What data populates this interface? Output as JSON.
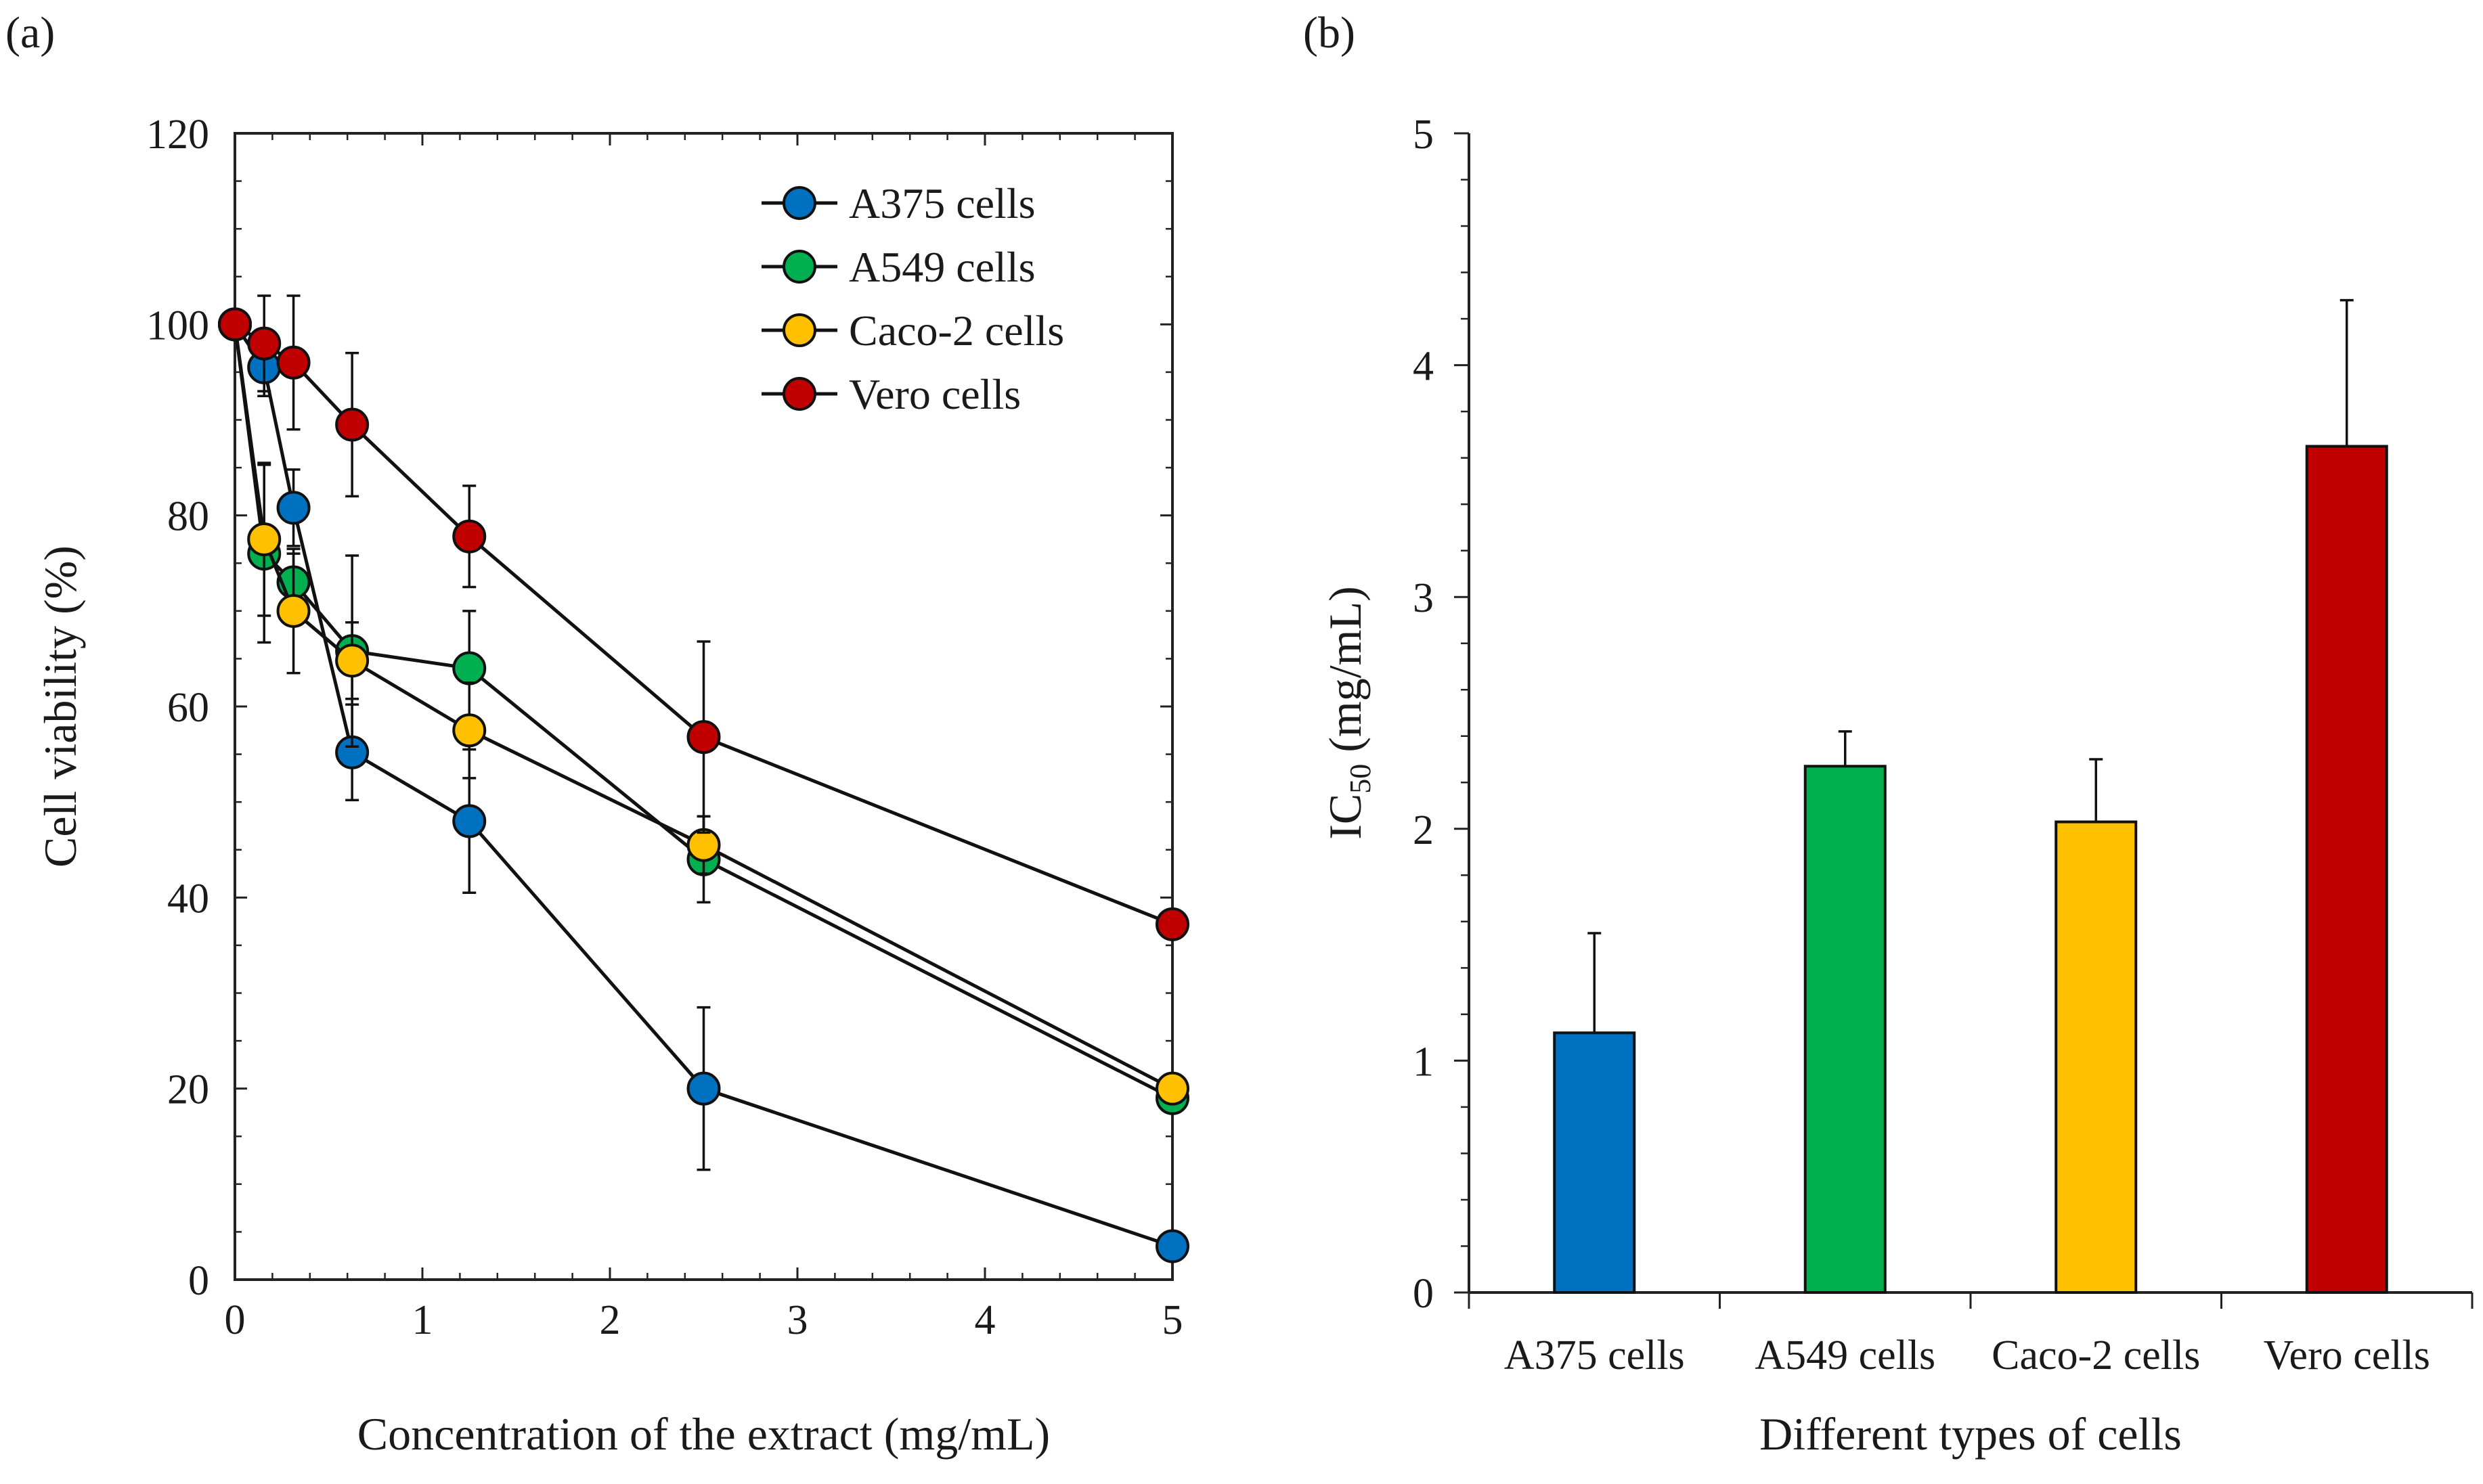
{
  "chart_data": [
    {
      "type": "line",
      "panel_label": "(a)",
      "title": "",
      "xlabel": "Concentration of the extract (mg/mL)",
      "ylabel": "Cell viability (%)",
      "xlim": [
        0,
        5
      ],
      "ylim": [
        0,
        120
      ],
      "xticks": [
        0,
        1,
        2,
        3,
        4,
        5
      ],
      "yticks": [
        0,
        20,
        40,
        60,
        80,
        100,
        120
      ],
      "x": [
        0,
        0.156,
        0.3125,
        0.625,
        1.25,
        2.5,
        5
      ],
      "legend_position": "top-right",
      "series": [
        {
          "name": "A375 cells",
          "color": "#0070c0",
          "values": [
            100,
            95.5,
            80.8,
            55.2,
            48.0,
            20.0,
            3.5
          ],
          "errors": [
            0,
            3,
            4,
            5,
            7.5,
            8.5,
            0
          ]
        },
        {
          "name": "A549 cells",
          "color": "#00b050",
          "values": [
            100,
            76.0,
            73.0,
            65.8,
            64.0,
            44.0,
            19.0
          ],
          "errors": [
            0,
            9.3,
            3,
            10,
            6,
            4.5,
            0
          ]
        },
        {
          "name": "Caco-2 cells",
          "color": "#ffc000",
          "values": [
            100,
            77.5,
            70.0,
            64.8,
            57.5,
            45.5,
            20.0
          ],
          "errors": [
            0,
            8,
            6.5,
            4,
            5,
            3,
            0
          ]
        },
        {
          "name": "Vero cells",
          "color": "#c00000",
          "values": [
            100,
            98.0,
            96.0,
            89.5,
            77.8,
            56.8,
            37.2
          ],
          "errors": [
            0,
            5,
            7,
            7.5,
            5.3,
            10,
            0
          ]
        }
      ]
    },
    {
      "type": "bar",
      "panel_label": "(b)",
      "title": "",
      "xlabel": "Different types of cells",
      "ylabel": "IC50 (mg/mL)",
      "ylabel_main": "IC",
      "ylabel_sub": "50",
      "ylabel_tail": " (mg/mL)",
      "ylim": [
        0,
        5
      ],
      "yticks": [
        0,
        1,
        2,
        3,
        4,
        5
      ],
      "categories": [
        "A375 cells",
        "A549 cells",
        "Caco-2 cells",
        "Vero cells"
      ],
      "values": [
        1.12,
        2.27,
        2.03,
        3.65
      ],
      "errors": [
        0.43,
        0.15,
        0.27,
        0.63
      ],
      "colors": [
        "#0070c0",
        "#00b050",
        "#ffc000",
        "#c00000"
      ]
    }
  ]
}
